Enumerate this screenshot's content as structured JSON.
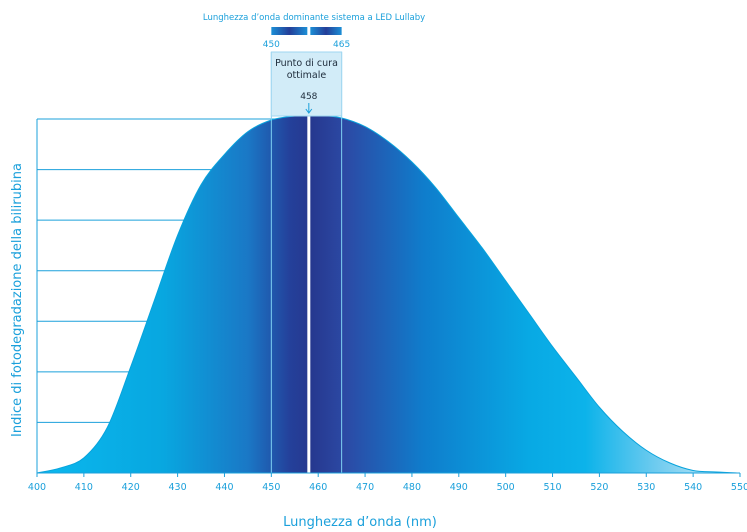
{
  "chart_data": {
    "type": "area",
    "xlabel": "Lunghezza d’onda (nm)",
    "ylabel": "Indice di fotodegradazione della bilirubina",
    "xlim": [
      400,
      550
    ],
    "ylim": [
      0,
      7
    ],
    "x_ticks": [
      400,
      410,
      420,
      430,
      440,
      450,
      460,
      470,
      480,
      490,
      500,
      510,
      520,
      530,
      540,
      550
    ],
    "y_gridlines": 7,
    "grid": "horizontal-left",
    "series": [
      {
        "x": [
          400,
          405,
          410,
          415,
          420,
          425,
          430,
          435,
          440,
          445,
          450,
          455,
          458,
          460,
          465,
          470,
          475,
          480,
          485,
          490,
          495,
          500,
          505,
          510,
          515,
          520,
          525,
          530,
          535,
          540,
          545,
          550
        ],
        "y": [
          0,
          0.1,
          0.3,
          0.9,
          2.1,
          3.4,
          4.7,
          5.7,
          6.3,
          6.75,
          6.98,
          7.06,
          7.08,
          7.08,
          7.02,
          6.85,
          6.55,
          6.15,
          5.65,
          5.05,
          4.45,
          3.8,
          3.15,
          2.5,
          1.9,
          1.3,
          0.82,
          0.45,
          0.2,
          0.05,
          0.02,
          0
        ]
      }
    ],
    "dominant_range": {
      "title": "Lunghezza d’onda dominante sistema a LED Lullaby",
      "start": 450,
      "end": 465,
      "start_label": "450",
      "end_label": "465"
    },
    "optimal_point": {
      "label": "Punto di cura ottimale",
      "value": 458,
      "value_label": "458"
    },
    "colors": {
      "accent": "#1ba0db",
      "area_light": "#0ab4ea",
      "area_dark": "#26388f",
      "callout_bg": "#d2ecf8"
    }
  }
}
